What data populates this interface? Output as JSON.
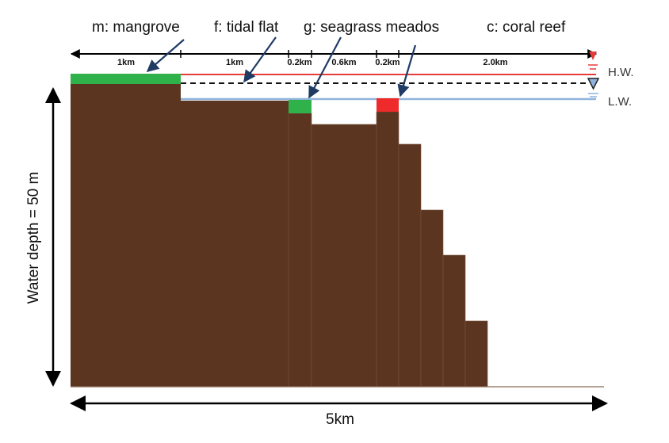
{
  "labels": {
    "mangrove": "m: mangrove",
    "tidal_flat": "f: tidal flat",
    "seagrass": "g: seagrass meados",
    "coral": "c: coral reef"
  },
  "segments": [
    "1km",
    "1km",
    "0.2km",
    "0.6km",
    "0.2km",
    "2.0km"
  ],
  "water_levels": {
    "high": "H.W.",
    "low": "L.W."
  },
  "depth_label": "Water depth = 50 m",
  "width_label": "5km",
  "colors": {
    "seabed": "#5b3520",
    "mangrove": "#2fb24a",
    "seagrass": "#2fb24a",
    "coral": "#ee2a2a",
    "high_water": "#e53b3b",
    "low_water": "#8fb3dc",
    "arrow": "#1f3b64"
  }
}
